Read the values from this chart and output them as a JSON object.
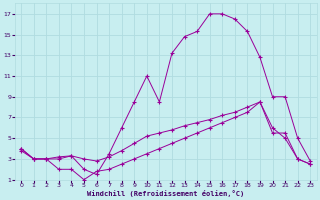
{
  "xlabel": "Windchill (Refroidissement éolien,°C)",
  "bg_color": "#c8eef0",
  "grid_color": "#b0dce0",
  "line_color": "#990099",
  "xlim": [
    -0.5,
    23.5
  ],
  "ylim": [
    1,
    18
  ],
  "xticks": [
    0,
    1,
    2,
    3,
    4,
    5,
    6,
    7,
    8,
    9,
    10,
    11,
    12,
    13,
    14,
    15,
    16,
    17,
    18,
    19,
    20,
    21,
    22,
    23
  ],
  "yticks": [
    1,
    3,
    5,
    7,
    9,
    11,
    13,
    15,
    17
  ],
  "line1_x": [
    0,
    1,
    2,
    3,
    4,
    5,
    6,
    7,
    8,
    9,
    10,
    11,
    12,
    13,
    14,
    15,
    16,
    17,
    18,
    19,
    20,
    21,
    22,
    23
  ],
  "line1_y": [
    4.0,
    3.0,
    3.0,
    3.2,
    3.3,
    2.0,
    1.5,
    3.5,
    6.0,
    8.5,
    11.0,
    8.5,
    13.2,
    14.8,
    15.3,
    17.0,
    17.0,
    16.5,
    15.3,
    12.8,
    9.0,
    9.0,
    5.0,
    2.8
  ],
  "line2_x": [
    0,
    1,
    2,
    3,
    4,
    5,
    6,
    7,
    8,
    9,
    10,
    11,
    12,
    13,
    14,
    15,
    16,
    17,
    18,
    19,
    20,
    21,
    22,
    23
  ],
  "line2_y": [
    4.0,
    3.0,
    3.0,
    3.0,
    3.3,
    3.0,
    2.8,
    3.2,
    3.8,
    4.5,
    5.2,
    5.5,
    5.8,
    6.2,
    6.5,
    6.8,
    7.2,
    7.5,
    8.0,
    8.5,
    6.0,
    5.0,
    3.0,
    2.5
  ],
  "line3_x": [
    0,
    1,
    2,
    3,
    4,
    5,
    6,
    7,
    8,
    9,
    10,
    11,
    12,
    13,
    14,
    15,
    16,
    17,
    18,
    19,
    20,
    21,
    22,
    23
  ],
  "line3_y": [
    3.8,
    3.0,
    3.0,
    2.0,
    2.0,
    1.0,
    1.8,
    2.0,
    2.5,
    3.0,
    3.5,
    4.0,
    4.5,
    5.0,
    5.5,
    6.0,
    6.5,
    7.0,
    7.5,
    8.5,
    5.5,
    5.5,
    3.0,
    2.5
  ]
}
